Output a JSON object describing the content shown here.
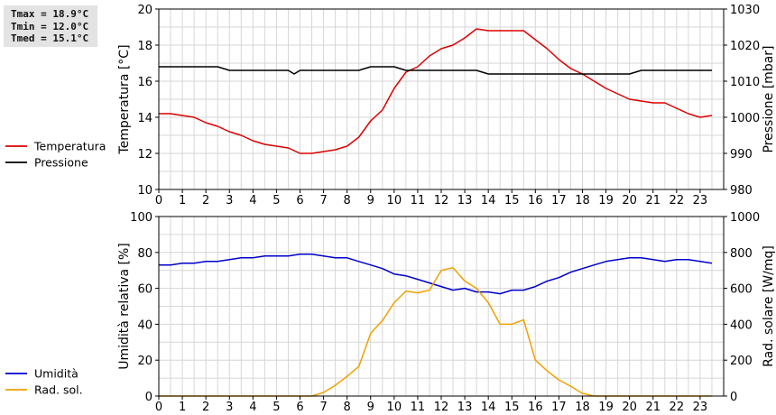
{
  "stats": {
    "tmax": "Tmax = 18.9°C",
    "tmin": "Tmin = 12.0°C",
    "tmed": "Tmed = 15.1°C"
  },
  "chart_data": [
    {
      "type": "line",
      "grid": true,
      "xlim": [
        0,
        24
      ],
      "xticks": [
        "0",
        "1",
        "2",
        "3",
        "4",
        "5",
        "6",
        "7",
        "8",
        "9",
        "10",
        "11",
        "12",
        "13",
        "14",
        "15",
        "16",
        "17",
        "18",
        "19",
        "20",
        "21",
        "22",
        "23"
      ],
      "ylabel": "Temperatura [°C]",
      "ylim": [
        10,
        20
      ],
      "yticks": [
        10,
        12,
        14,
        16,
        18,
        20
      ],
      "y2label": "Pressione [mbar]",
      "y2lim": [
        980,
        1030
      ],
      "y2ticks": [
        980,
        990,
        1000,
        1010,
        1020,
        1030
      ],
      "legend_position": "left",
      "series": [
        {
          "name": "Temperatura",
          "axis": "left",
          "color": "#dd0000",
          "x": [
            0,
            0.5,
            1,
            1.5,
            2,
            2.5,
            3,
            3.5,
            4,
            4.5,
            5,
            5.5,
            6,
            6.5,
            7,
            7.5,
            8,
            8.5,
            9,
            9.5,
            10,
            10.5,
            11,
            11.5,
            12,
            12.5,
            13,
            13.5,
            14,
            14.5,
            15,
            15.5,
            16,
            16.5,
            17,
            17.5,
            18,
            18.5,
            19,
            19.5,
            20,
            20.5,
            21,
            21.5,
            22,
            22.5,
            23,
            23.5
          ],
          "values": [
            14.2,
            14.2,
            14.1,
            14.0,
            13.7,
            13.5,
            13.2,
            13.0,
            12.7,
            12.5,
            12.4,
            12.3,
            12.0,
            12.0,
            12.1,
            12.2,
            12.4,
            12.9,
            13.8,
            14.4,
            15.6,
            16.5,
            16.8,
            17.4,
            17.8,
            18.0,
            18.4,
            18.9,
            18.8,
            18.8,
            18.8,
            18.8,
            18.3,
            17.8,
            17.2,
            16.7,
            16.4,
            16.0,
            15.6,
            15.3,
            15.0,
            14.9,
            14.8,
            14.8,
            14.5,
            14.2,
            14.0,
            14.1
          ]
        },
        {
          "name": "Pressione",
          "axis": "right",
          "color": "#000000",
          "x": [
            0,
            0.5,
            1,
            1.5,
            2,
            2.5,
            3,
            3.5,
            4,
            4.5,
            5,
            5.5,
            5.75,
            6,
            6.5,
            7,
            7.5,
            8,
            8.5,
            9,
            9.5,
            10,
            10.5,
            11,
            11.5,
            12,
            12.5,
            13,
            13.5,
            14,
            14.5,
            15,
            15.5,
            16,
            16.5,
            17,
            17.5,
            18,
            18.5,
            19,
            19.5,
            20,
            20.5,
            21,
            21.5,
            22,
            22.5,
            23,
            23.5
          ],
          "values": [
            1014,
            1014,
            1014,
            1014,
            1014,
            1014,
            1013,
            1013,
            1013,
            1013,
            1013,
            1013,
            1012,
            1013,
            1013,
            1013,
            1013,
            1013,
            1013,
            1014,
            1014,
            1014,
            1013,
            1013,
            1013,
            1013,
            1013,
            1013,
            1013,
            1012,
            1012,
            1012,
            1012,
            1012,
            1012,
            1012,
            1012,
            1012,
            1012,
            1012,
            1012,
            1012,
            1013,
            1013,
            1013,
            1013,
            1013,
            1013,
            1013
          ]
        }
      ]
    },
    {
      "type": "line",
      "grid": true,
      "xlim": [
        0,
        24
      ],
      "xticks": [
        "0",
        "1",
        "2",
        "3",
        "4",
        "5",
        "6",
        "7",
        "8",
        "9",
        "10",
        "11",
        "12",
        "13",
        "14",
        "15",
        "16",
        "17",
        "18",
        "19",
        "20",
        "21",
        "22",
        "23"
      ],
      "ylabel": "Umidità relativa [%]",
      "ylim": [
        0,
        100
      ],
      "yticks": [
        0,
        20,
        40,
        60,
        80,
        100
      ],
      "y2label": "Rad. solare [W/mq]",
      "y2lim": [
        0,
        1000
      ],
      "y2ticks": [
        0,
        200,
        400,
        600,
        800,
        1000
      ],
      "legend_position": "left",
      "series": [
        {
          "name": "Umidità",
          "axis": "left",
          "color": "#0000cc",
          "x": [
            0,
            0.5,
            1,
            1.5,
            2,
            2.5,
            3,
            3.5,
            4,
            4.5,
            5,
            5.5,
            6,
            6.5,
            7,
            7.5,
            8,
            8.5,
            9,
            9.5,
            10,
            10.5,
            11,
            11.5,
            12,
            12.5,
            13,
            13.5,
            14,
            14.5,
            15,
            15.5,
            16,
            16.5,
            17,
            17.5,
            18,
            18.5,
            19,
            19.5,
            20,
            20.5,
            21,
            21.5,
            22,
            22.5,
            23,
            23.5
          ],
          "values": [
            73,
            73,
            74,
            74,
            75,
            75,
            76,
            77,
            77,
            78,
            78,
            78,
            79,
            79,
            78,
            77,
            77,
            75,
            73,
            71,
            68,
            67,
            65,
            63,
            61,
            59,
            60,
            58,
            58,
            57,
            59,
            59,
            61,
            64,
            66,
            69,
            71,
            73,
            75,
            76,
            77,
            77,
            76,
            75,
            76,
            76,
            75,
            74
          ]
        },
        {
          "name": "Rad. sol.",
          "axis": "right",
          "color": "#f0a000",
          "x": [
            0,
            0.5,
            1,
            1.5,
            2,
            2.5,
            3,
            3.5,
            4,
            4.5,
            5,
            5.5,
            6,
            6.5,
            7,
            7.5,
            8,
            8.5,
            9,
            9.5,
            10,
            10.5,
            11,
            11.5,
            12,
            12.5,
            13,
            13.5,
            14,
            14.5,
            15,
            15.5,
            16,
            16.5,
            17,
            17.5,
            18,
            18.5,
            19,
            19.5,
            20,
            20.5,
            21,
            21.5,
            22,
            22.5,
            23,
            23.5
          ],
          "values": [
            0,
            0,
            0,
            0,
            0,
            0,
            0,
            0,
            0,
            0,
            0,
            0,
            0,
            0,
            20,
            60,
            110,
            165,
            350,
            420,
            520,
            585,
            575,
            590,
            700,
            715,
            640,
            600,
            520,
            400,
            400,
            425,
            200,
            140,
            90,
            55,
            15,
            0,
            0,
            0,
            0,
            0,
            0,
            0,
            0,
            0,
            0,
            0
          ]
        }
      ]
    }
  ]
}
